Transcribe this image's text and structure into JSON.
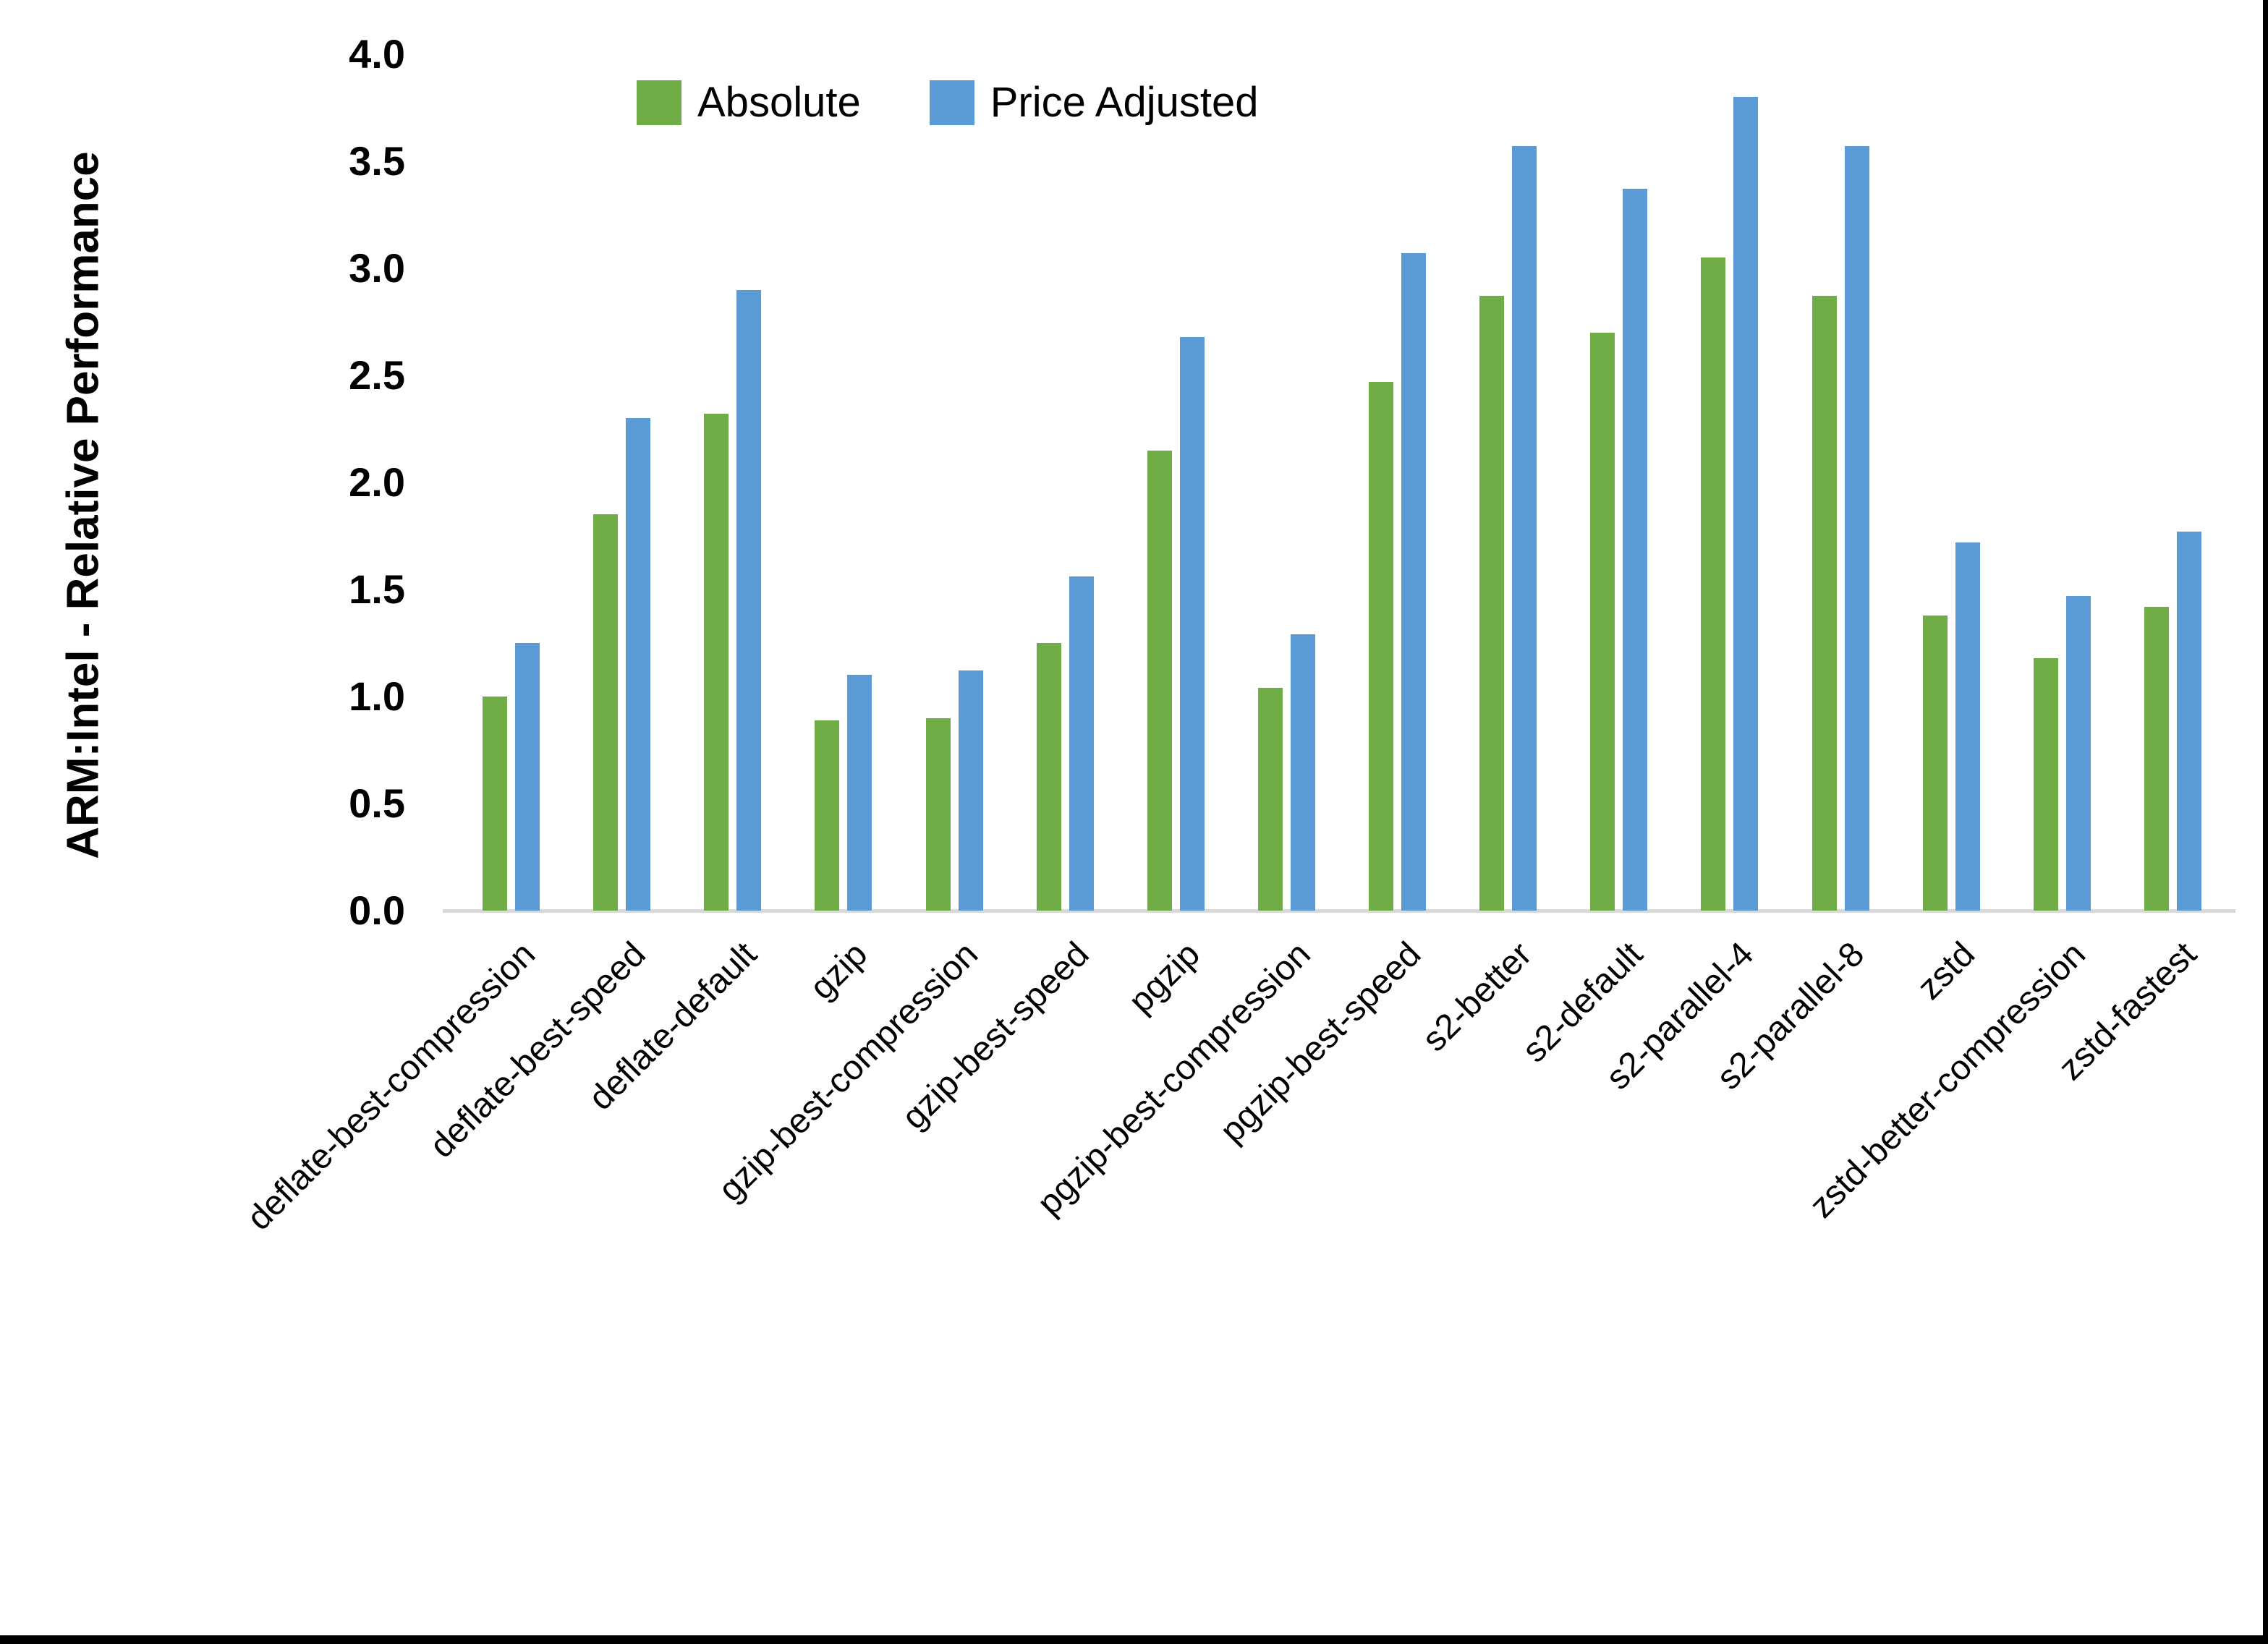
{
  "chart_data": {
    "type": "bar",
    "title": "",
    "xlabel": "",
    "ylabel": "ARM:Intel - Relative Performance",
    "ylim": [
      0.0,
      4.0
    ],
    "yticks": [
      0.0,
      0.5,
      1.0,
      1.5,
      2.0,
      2.5,
      3.0,
      3.5,
      4.0
    ],
    "ytick_format": "one-decimal",
    "grid": false,
    "legend_position": "top-center",
    "xlabel_rotation_deg": 45,
    "background": "#FFFFFF",
    "text_color": "#000000",
    "axis_line_color": "#D9D9D9",
    "frame_border_color": "#000000",
    "categories": [
      "deflate-best-compression",
      "deflate-best-speed",
      "deflate-default",
      "gzip",
      "gzip-best-compression",
      "gzip-best-speed",
      "pgzip",
      "pgzip-best-compression",
      "pgzip-best-speed",
      "s2-better",
      "s2-default",
      "s2-parallel-4",
      "s2-parallel-8",
      "zstd",
      "zstd-better-compression",
      "zstd-fastest"
    ],
    "series": [
      {
        "name": "Absolute",
        "color": "#70AD47",
        "values": [
          1.0,
          1.85,
          2.32,
          0.89,
          0.9,
          1.25,
          2.15,
          1.04,
          2.47,
          2.87,
          2.7,
          3.05,
          2.87,
          1.38,
          1.18,
          1.42
        ]
      },
      {
        "name": "Price Adjusted",
        "color": "#5B9BD5",
        "values": [
          1.25,
          2.3,
          2.9,
          1.1,
          1.12,
          1.56,
          2.68,
          1.29,
          3.07,
          3.57,
          3.37,
          3.8,
          3.57,
          1.72,
          1.47,
          1.77
        ]
      }
    ]
  }
}
